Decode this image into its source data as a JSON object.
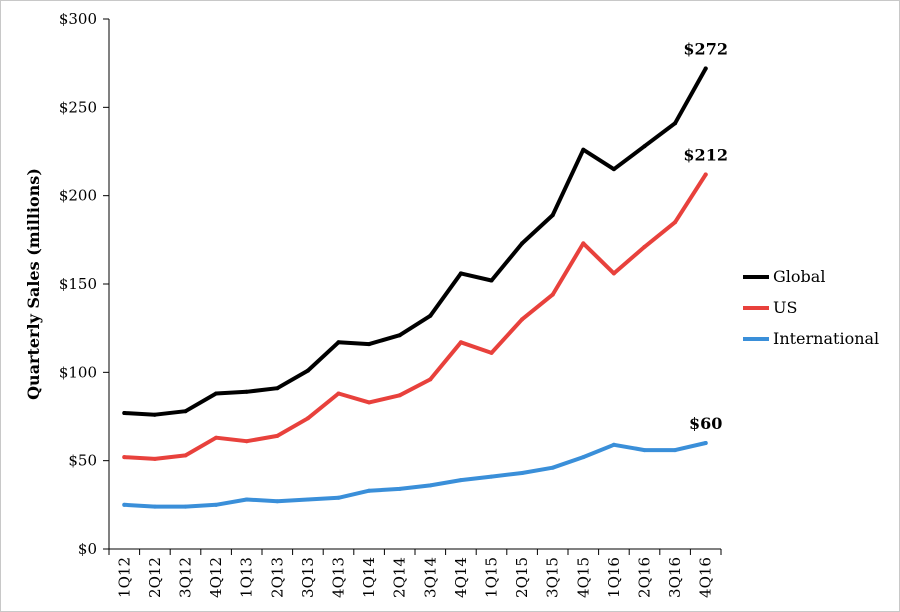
{
  "chart_data": {
    "type": "line",
    "ylabel": "Quarterly Sales (millions)",
    "xlabel": "",
    "categories": [
      "1Q12",
      "2Q12",
      "3Q12",
      "4Q12",
      "1Q13",
      "2Q13",
      "3Q13",
      "4Q13",
      "1Q14",
      "2Q14",
      "3Q14",
      "4Q14",
      "1Q15",
      "2Q15",
      "3Q15",
      "4Q15",
      "1Q16",
      "2Q16",
      "3Q16",
      "4Q16"
    ],
    "ylim": [
      0,
      300
    ],
    "yticks": [
      0,
      50,
      100,
      150,
      200,
      250,
      300
    ],
    "ytick_labels": [
      "$0",
      "$50",
      "$100",
      "$150",
      "$200",
      "$250",
      "$300"
    ],
    "grid": false,
    "legend_position": "right",
    "series": [
      {
        "name": "Global",
        "color": "#000000",
        "values": [
          77,
          76,
          78,
          88,
          89,
          91,
          101,
          117,
          116,
          121,
          132,
          156,
          152,
          173,
          189,
          226,
          215,
          228,
          241,
          272
        ]
      },
      {
        "name": "US",
        "color": "#e8413c",
        "values": [
          52,
          51,
          53,
          63,
          61,
          64,
          74,
          88,
          83,
          87,
          96,
          117,
          111,
          130,
          144,
          173,
          156,
          171,
          185,
          212
        ]
      },
      {
        "name": "International",
        "color": "#3a8fd9",
        "values": [
          25,
          24,
          24,
          25,
          28,
          27,
          28,
          29,
          33,
          34,
          36,
          39,
          41,
          43,
          46,
          52,
          59,
          56,
          56,
          60
        ]
      }
    ],
    "annotations": [
      {
        "text": "$272",
        "series": "Global"
      },
      {
        "text": "$212",
        "series": "US"
      },
      {
        "text": "$60",
        "series": "International"
      }
    ]
  }
}
